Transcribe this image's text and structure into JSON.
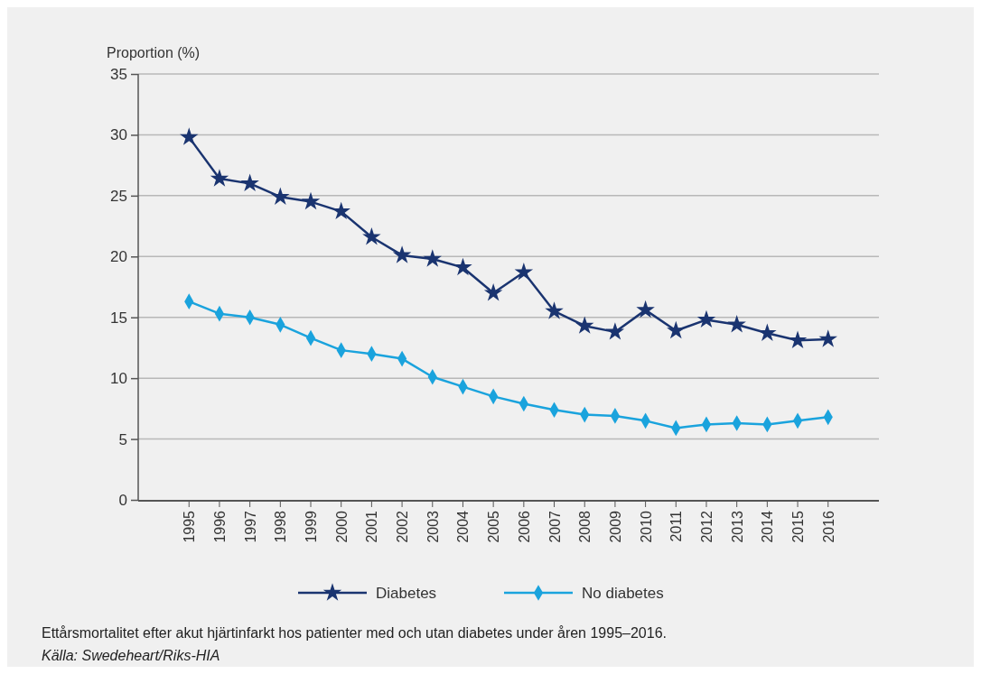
{
  "chart_data": {
    "type": "line",
    "ylabel": "Proportion (%)",
    "categories": [
      "1995",
      "1996",
      "1997",
      "1998",
      "1999",
      "2000",
      "2001",
      "2002",
      "2003",
      "2004",
      "2005",
      "2006",
      "2007",
      "2008",
      "2009",
      "2010",
      "2011",
      "2012",
      "2013",
      "2014",
      "2015",
      "2016"
    ],
    "series": [
      {
        "name": "Diabetes",
        "color": "#1a3470",
        "marker": "star",
        "values": [
          29.8,
          26.4,
          26.0,
          24.9,
          24.5,
          23.7,
          21.6,
          20.1,
          19.8,
          19.1,
          17.0,
          18.7,
          15.5,
          14.3,
          13.8,
          15.6,
          13.9,
          14.8,
          14.4,
          13.7,
          13.1,
          13.2
        ]
      },
      {
        "name": "No diabetes",
        "color": "#1aa3dd",
        "marker": "diamond",
        "values": [
          16.3,
          15.3,
          15.0,
          14.4,
          13.3,
          12.3,
          12.0,
          11.6,
          10.1,
          9.3,
          8.5,
          7.9,
          7.4,
          7.0,
          6.9,
          6.5,
          5.9,
          6.2,
          6.3,
          6.2,
          6.5,
          6.8
        ]
      }
    ],
    "ylim": [
      0,
      35
    ],
    "yticks": [
      0,
      5,
      10,
      15,
      20,
      25,
      30,
      35
    ],
    "grid": "y",
    "legend": "bottom",
    "line_style": "solid",
    "annotations": [
      "Ettårsmortalitet efter akut hjärtinfarkt hos patienter med och utan diabetes under åren 1995–2016.",
      "Källa: Swedeheart/Riks-HIA"
    ]
  }
}
